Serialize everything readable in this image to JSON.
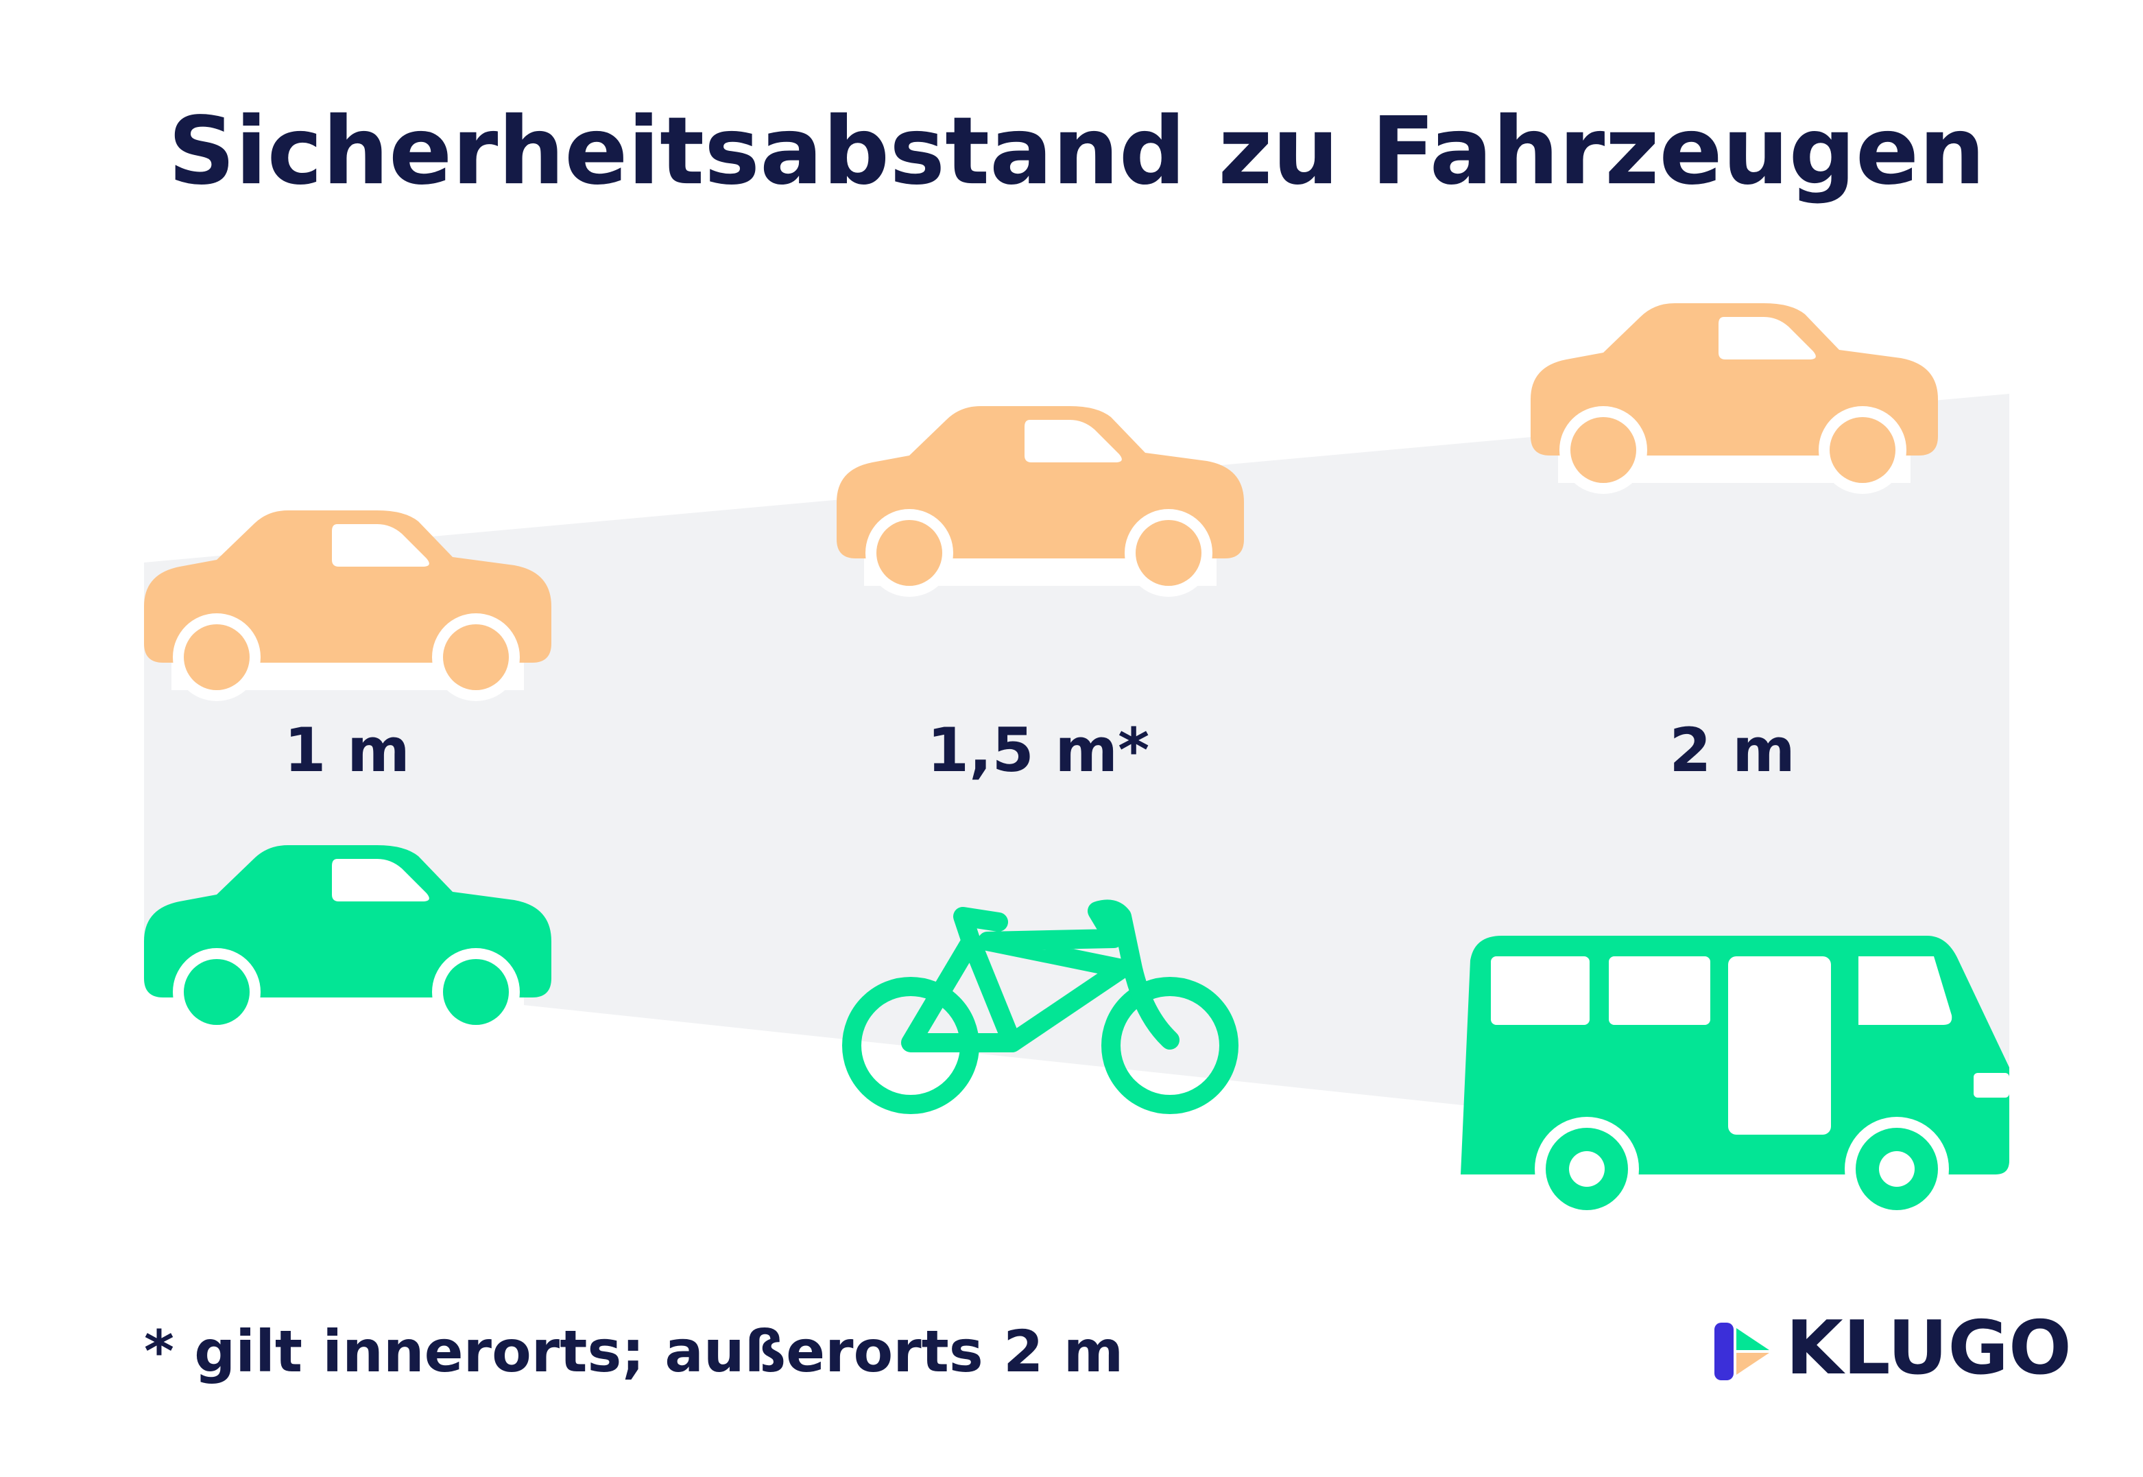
{
  "title": "Sicherheitsabstand zu Fahrzeugen",
  "distances": [
    {
      "label": "1 m"
    },
    {
      "label": "1,5 m*"
    },
    {
      "label": "2 m"
    }
  ],
  "footnote": "* gilt innerorts; außerorts 2 m",
  "logo": "KLUGO"
}
